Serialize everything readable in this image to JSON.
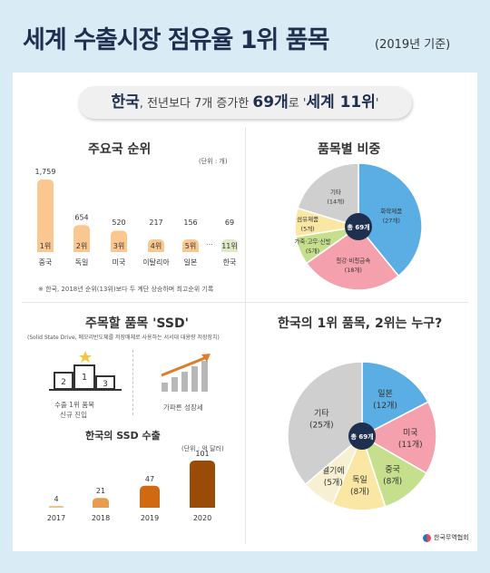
{
  "header": {
    "title": "세계 수출시장 점유율 1위 품목",
    "subtitle": "(2019년 기준)"
  },
  "banner": {
    "part1": "한국",
    "part2": ", 전년보다 7개 증가한 ",
    "part3": "69개",
    "part4": "로 '",
    "part5": "세계 11위",
    "part6": "'"
  },
  "footer": {
    "org": "한국무역협회"
  },
  "chart_data": [
    {
      "type": "bar",
      "title": "주요국 순위",
      "unit_note": "(단위 : 개)",
      "categories": [
        "중국",
        "독일",
        "미국",
        "이탈리아",
        "일본",
        "한국"
      ],
      "values": [
        1759,
        654,
        520,
        217,
        156,
        69
      ],
      "rank_labels": [
        "1위",
        "2위",
        "3위",
        "4위",
        "5위",
        "11위"
      ],
      "value_labels": [
        "1,759",
        "654",
        "520",
        "217",
        "156",
        "69"
      ],
      "ellipsis": "...",
      "footnote": "※ 한국, 2018년 순위(13위)보다 두 계단 상승하며 최고순위 기록"
    },
    {
      "type": "pie",
      "title": "품목별 비중",
      "center_label": "총 69개",
      "slices": [
        {
          "name": "화학제품",
          "value": 27,
          "label": "(27개)",
          "color": "#5aaee3"
        },
        {
          "name": "철강·비철금속",
          "value": 18,
          "label": "(18개)",
          "color": "#f4a1ad"
        },
        {
          "name": "가죽·고무·신발",
          "value": 5,
          "label": "(5개)",
          "color": "#c5df8d"
        },
        {
          "name": "섬유제품",
          "value": 5,
          "label": "(5개)",
          "color": "#fbe7a4"
        },
        {
          "name": "기타",
          "value": 14,
          "label": "(14개)",
          "color": "#cfcfcf"
        }
      ]
    },
    {
      "type": "bar",
      "title": "한국의 SSD 수출",
      "unit_note": "(단위 : 억 달러)",
      "categories": [
        "2017",
        "2018",
        "2019",
        "2020"
      ],
      "values": [
        4,
        21,
        47,
        101
      ],
      "value_labels": [
        "4",
        "21",
        "47",
        "101"
      ]
    },
    {
      "type": "pie",
      "title": "한국의 1위 품목, 2위는 누구?",
      "center_label": "총 69개",
      "slices": [
        {
          "name": "일본",
          "value": 12,
          "label": "(12개)",
          "color": "#5aaee3"
        },
        {
          "name": "미국",
          "value": 11,
          "label": "(11개)",
          "color": "#f4a1ad"
        },
        {
          "name": "중국",
          "value": 8,
          "label": "(8개)",
          "color": "#c5df8d"
        },
        {
          "name": "독일",
          "value": 8,
          "label": "(8개)",
          "color": "#fbe7a4"
        },
        {
          "name": "벨기에",
          "value": 5,
          "label": "(5개)",
          "color": "#f7f0d2"
        },
        {
          "name": "기타",
          "value": 25,
          "label": "(25개)",
          "color": "#cfcfcf"
        }
      ]
    }
  ],
  "ssd": {
    "title": "주목할 품목 'SSD'",
    "description": "(Solid State Drive, 메모리반도체를 저장매체로 사용하는 서서대 대용량 저장장치)",
    "feature1_line1": "수출 1위 품목",
    "feature1_line2": "신규 진입",
    "feature2": "가파른 성장세",
    "podium_digits": [
      "2",
      "1",
      "3"
    ]
  }
}
